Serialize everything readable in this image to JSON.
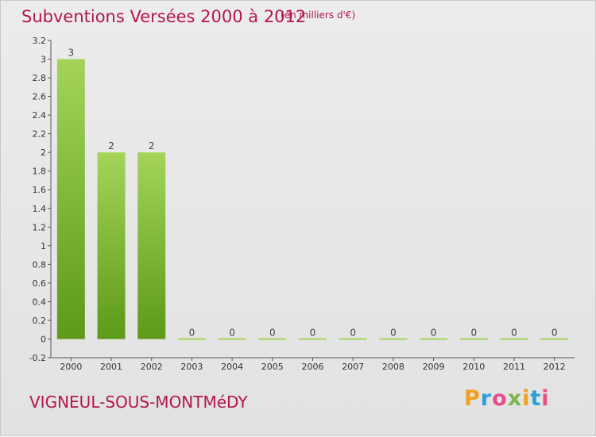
{
  "title": "Subventions Versées 2000 à 2012",
  "subtitle": "(en milliers d'€)",
  "commune": "VIGNEUL-SOUS-MONTMéDY",
  "logo": {
    "text": "Proxiti",
    "colors": [
      "#f0a020",
      "#2a9fd8",
      "#e84c8a",
      "#7ab648",
      "#f0a020",
      "#2a9fd8",
      "#e84c8a"
    ]
  },
  "colors": {
    "bar_top": "#a4d45a",
    "bar_bottom": "#5c9a18",
    "title": "#b5154b"
  },
  "chart_data": {
    "type": "bar",
    "title": "Subventions Versées 2000 à 2012",
    "categories": [
      "2000",
      "2001",
      "2002",
      "2003",
      "2004",
      "2005",
      "2006",
      "2007",
      "2008",
      "2009",
      "2010",
      "2011",
      "2012"
    ],
    "values": [
      3,
      2,
      2,
      0,
      0,
      0,
      0,
      0,
      0,
      0,
      0,
      0,
      0
    ],
    "ylim": [
      -0.2,
      3.2
    ],
    "yticks": [
      "-0.2",
      "0",
      "0.2",
      "0.4",
      "0.6",
      "0.8",
      "1",
      "1.2",
      "1.4",
      "1.6",
      "1.8",
      "2",
      "2.2",
      "2.4",
      "2.6",
      "2.8",
      "3",
      "3.2"
    ],
    "grid": false,
    "legend": "none"
  }
}
